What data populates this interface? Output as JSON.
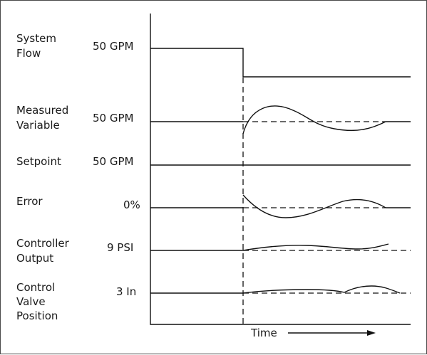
{
  "rows": [
    {
      "label_lines": [
        "System",
        "Flow"
      ],
      "value": "50 GPM"
    },
    {
      "label_lines": [
        "Measured",
        "Variable"
      ],
      "value": "50 GPM"
    },
    {
      "label_lines": [
        "Setpoint"
      ],
      "value": "50 GPM"
    },
    {
      "label_lines": [
        "Error"
      ],
      "value": "0%"
    },
    {
      "label_lines": [
        "Controller",
        "Output"
      ],
      "value": "9 PSI"
    },
    {
      "label_lines": [
        "Control",
        "Valve",
        "Position"
      ],
      "value": "3 In"
    }
  ],
  "x_axis": {
    "label": "Time"
  }
}
